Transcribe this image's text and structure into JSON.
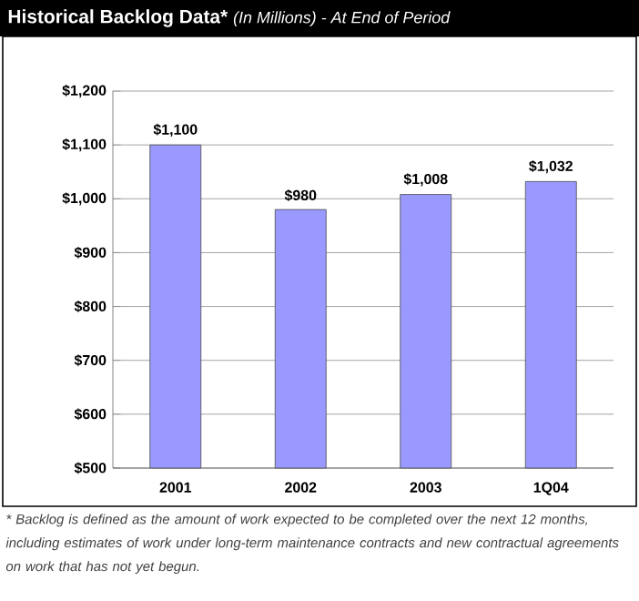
{
  "chart_data": {
    "type": "bar",
    "title": "Historical Backlog Data*",
    "subtitle": "(In Millions) - At End of Period",
    "categories": [
      "2001",
      "2002",
      "2003",
      "1Q04"
    ],
    "values": [
      1100,
      980,
      1008,
      1032
    ],
    "value_labels": [
      "$1,100",
      "$980",
      "$1,008",
      "$1,032"
    ],
    "color": "#9999ff",
    "ylim": [
      500,
      1200
    ],
    "yticks": [
      {
        "value": 500,
        "label": "$500"
      },
      {
        "value": 600,
        "label": "$600"
      },
      {
        "value": 700,
        "label": "$700"
      },
      {
        "value": 800,
        "label": "$800"
      },
      {
        "value": 900,
        "label": "$900"
      },
      {
        "value": 1000,
        "label": "$1,000"
      },
      {
        "value": 1100,
        "label": "$1,100"
      },
      {
        "value": 1200,
        "label": "$1,200"
      }
    ],
    "grid": "y",
    "annotations": [
      "* Backlog is defined as the amount of work expected to be completed over the next 12 months, including estimates of work under long-term maintenance contracts and new contractual agreements on work that has not yet begun."
    ]
  }
}
